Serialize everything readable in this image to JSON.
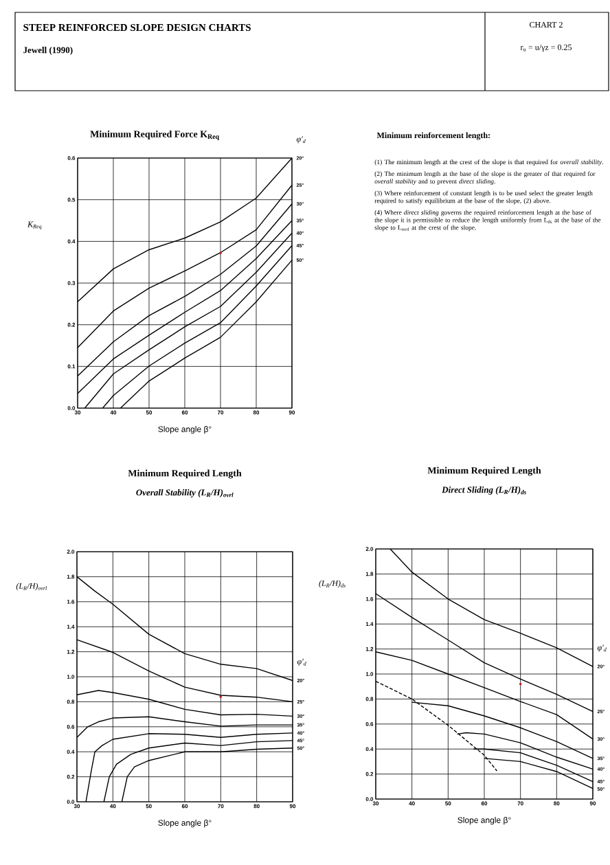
{
  "chart_data": [
    {
      "type": "other",
      "title": "STEEP REINFORCED SLOPE DESIGN CHARTS",
      "subtitle": "Jewell (1990)",
      "annotations": [
        "CHART 2",
        "r$_{u}$ = u/γz = 0.25"
      ]
    },
    {
      "type": "line",
      "title": "Minimum Required Force  K$_{Req}$",
      "xlabel": "Slope angle    β°",
      "ylabel": "K$_{Req}$",
      "legend_title": "φ′$_{d}$",
      "xlim": [
        30,
        90
      ],
      "ylim": [
        0,
        0.6
      ],
      "xticks": [
        30,
        40,
        50,
        60,
        70,
        80,
        90
      ],
      "yticks": [
        {
          "value": 0,
          "label": "0.0"
        },
        0.1,
        0.2,
        0.3,
        0.4,
        0.5,
        0.6
      ],
      "grid": true,
      "series": [
        {
          "name": "20°",
          "color": "#000000",
          "x": [
            30,
            40,
            50,
            60,
            70,
            80,
            90
          ],
          "values": [
            0.255,
            0.334,
            0.38,
            0.408,
            0.447,
            0.504,
            0.6
          ]
        },
        {
          "name": "25°",
          "color": "#000000",
          "x": [
            30,
            40,
            50,
            60,
            70,
            80,
            90
          ],
          "values": [
            0.145,
            0.233,
            0.288,
            0.329,
            0.373,
            0.428,
            0.535
          ]
        },
        {
          "name": "30°",
          "color": "#000000",
          "x": [
            30,
            40,
            50,
            60,
            70,
            80,
            90
          ],
          "values": [
            0.077,
            0.159,
            0.222,
            0.268,
            0.321,
            0.389,
            0.49
          ]
        },
        {
          "name": "35°",
          "color": "#000000",
          "x": [
            30,
            40,
            50,
            60,
            70,
            80,
            90
          ],
          "values": [
            0.035,
            0.118,
            0.175,
            0.23,
            0.282,
            0.359,
            0.45
          ]
        },
        {
          "name": "40°",
          "color": "#000000",
          "x": [
            32,
            40,
            50,
            60,
            70,
            80,
            90
          ],
          "values": [
            0,
            0.082,
            0.14,
            0.195,
            0.244,
            0.326,
            0.42
          ]
        },
        {
          "name": "45°",
          "color": "#000000",
          "x": [
            37,
            40,
            50,
            60,
            70,
            80,
            90
          ],
          "values": [
            0,
            0.03,
            0.101,
            0.156,
            0.205,
            0.293,
            0.39
          ]
        },
        {
          "name": "50°",
          "color": "#000000",
          "x": [
            42,
            50,
            60,
            70,
            80,
            90
          ],
          "values": [
            0,
            0.065,
            0.12,
            0.17,
            0.255,
            0.355
          ]
        },
        {
          "type": "scatter",
          "color": "#b22222",
          "x": [
            70
          ],
          "values": [
            0.372
          ]
        }
      ]
    },
    {
      "type": "other",
      "title": "Minimum reinforcement length:",
      "annotations": [
        "(1) The minimum length at the crest of the slope is that required for *overall stability*.",
        "(2) The minimum length at the base of the slope is the greater of that required for *overall stability* and to prevent *direct sliding*.",
        "(3) Where reinforcement of constant length is to be used select the greater length required to satisfy equilibrium at the base of the slope, (2) above.",
        "(4) Where *direct sliding* governs the required reinforcement length at the base of the slope it is permissible to reduce the length uniformly from L$_{ds}$ at the base of the slope to L$_{ovrl}$ at the crest of the slope."
      ]
    },
    {
      "type": "line",
      "title": "Minimum Required Length",
      "subtitle": "Overall Stability    (L$_{R}$/H)$_{ovrl}$",
      "xlabel": "Slope angle    β°",
      "ylabel": "(L$_{R}$/H)$_{ovrl}$",
      "legend_title": "φ′$_{d}$",
      "xlim": [
        30,
        90
      ],
      "ylim": [
        0,
        2
      ],
      "xticks": [
        30,
        40,
        50,
        60,
        70,
        80,
        90
      ],
      "yticks": [
        {
          "value": 0,
          "label": "0.0"
        },
        0.2,
        0.4,
        0.6,
        0.8,
        {
          "value": 1,
          "label": "1.0"
        },
        1.2,
        1.4,
        1.6,
        1.8,
        {
          "value": 2,
          "label": "2.0"
        }
      ],
      "grid": true,
      "series": [
        {
          "name": "20°",
          "color": "#000000",
          "x": [
            30,
            35,
            40,
            50,
            60,
            70,
            80,
            90
          ],
          "values": [
            1.8,
            1.685,
            1.58,
            1.34,
            1.185,
            1.1,
            1.065,
            0.97
          ]
        },
        {
          "name": "25°",
          "color": "#000000",
          "x": [
            30,
            40,
            50,
            60,
            70,
            80,
            90
          ],
          "values": [
            1.296,
            1.195,
            1.046,
            0.917,
            0.852,
            0.837,
            0.8
          ]
        },
        {
          "name": "30°",
          "color": "#000000",
          "x": [
            30,
            36,
            40,
            50,
            60,
            70,
            80,
            90
          ],
          "values": [
            0.856,
            0.89,
            0.874,
            0.82,
            0.74,
            0.695,
            0.7,
            0.685
          ]
        },
        {
          "name": "35°",
          "color": "#000000",
          "x": [
            30,
            33,
            36,
            40,
            50,
            60,
            70,
            80,
            90
          ],
          "values": [
            0.515,
            0.6,
            0.64,
            0.67,
            0.68,
            0.64,
            0.605,
            0.615,
            0.615
          ]
        },
        {
          "name": "40°",
          "color": "#000000",
          "x": [
            32.5,
            34,
            35,
            37,
            40,
            50,
            60,
            70,
            80,
            90
          ],
          "values": [
            0,
            0.25,
            0.4,
            0.45,
            0.5,
            0.545,
            0.54,
            0.515,
            0.54,
            0.55
          ]
        },
        {
          "name": "45°",
          "color": "#000000",
          "x": [
            37.5,
            39,
            41,
            45,
            50,
            60,
            70,
            80,
            90
          ],
          "values": [
            0,
            0.2,
            0.3,
            0.38,
            0.43,
            0.47,
            0.45,
            0.48,
            0.49
          ]
        },
        {
          "name": "50°",
          "color": "#000000",
          "x": [
            42.5,
            44,
            46,
            50,
            60,
            70,
            80,
            90
          ],
          "values": [
            0,
            0.2,
            0.28,
            0.33,
            0.4,
            0.4,
            0.42,
            0.43
          ]
        },
        {
          "type": "scatter",
          "color": "#b22222",
          "x": [
            70
          ],
          "values": [
            0.84
          ]
        }
      ]
    },
    {
      "type": "line",
      "title": "Minimum Required Length",
      "subtitle": "Direct Sliding    (L$_{R}$/H)$_{ds}$",
      "xlabel": "Slope angle    β°",
      "ylabel": "(L$_{R}$/H)$_{ds}$",
      "legend_title": "φ′$_{d}$",
      "xlim": [
        30,
        90
      ],
      "ylim": [
        0,
        2
      ],
      "xticks": [
        30,
        40,
        50,
        60,
        70,
        80,
        90
      ],
      "yticks": [
        {
          "value": 0,
          "label": "0.0"
        },
        0.2,
        0.4,
        0.6,
        0.8,
        {
          "value": 1,
          "label": "1.0"
        },
        1.2,
        1.4,
        1.6,
        1.8,
        {
          "value": 2,
          "label": "2.0"
        }
      ],
      "grid": true,
      "series": [
        {
          "name": "20°",
          "color": "#000000",
          "x": [
            34,
            40,
            50,
            60,
            70,
            80,
            90
          ],
          "values": [
            2,
            1.815,
            1.6,
            1.435,
            1.326,
            1.21,
            1.06
          ]
        },
        {
          "name": "25°",
          "color": "#000000",
          "x": [
            30,
            40,
            50,
            60,
            70,
            80,
            90
          ],
          "values": [
            1.643,
            1.453,
            1.272,
            1.09,
            0.96,
            0.837,
            0.7
          ]
        },
        {
          "name": "30°",
          "color": "#000000",
          "x": [
            30,
            40,
            50,
            60,
            70,
            80,
            90
          ],
          "values": [
            1.177,
            1.109,
            1,
            0.891,
            0.78,
            0.675,
            0.48
          ]
        },
        {
          "name": "35°",
          "color": "#000000",
          "x": [
            40,
            50,
            60,
            70,
            80,
            90
          ],
          "values": [
            0.774,
            0.746,
            0.665,
            0.57,
            0.46,
            0.325
          ]
        },
        {
          "name": "40°",
          "color": "#000000",
          "x": [
            52.5,
            55,
            60,
            70,
            80,
            90
          ],
          "values": [
            0.52,
            0.53,
            0.52,
            0.45,
            0.335,
            0.24
          ]
        },
        {
          "name": "45°",
          "color": "#000000",
          "x": [
            57,
            60,
            70,
            80,
            90
          ],
          "values": [
            0.4,
            0.4,
            0.37,
            0.27,
            0.14
          ]
        },
        {
          "name": "50°",
          "color": "#000000",
          "x": [
            60,
            70,
            80,
            90
          ],
          "values": [
            0.325,
            0.3,
            0.22,
            0.085
          ]
        },
        {
          "color": "#000000",
          "line_style": "dashed",
          "x": [
            30,
            40,
            50,
            60,
            63.5
          ],
          "values": [
            0.942,
            0.8,
            0.59,
            0.35,
            0.225
          ]
        },
        {
          "type": "scatter",
          "color": "#b22222",
          "x": [
            70
          ],
          "values": [
            0.92
          ]
        }
      ]
    }
  ]
}
